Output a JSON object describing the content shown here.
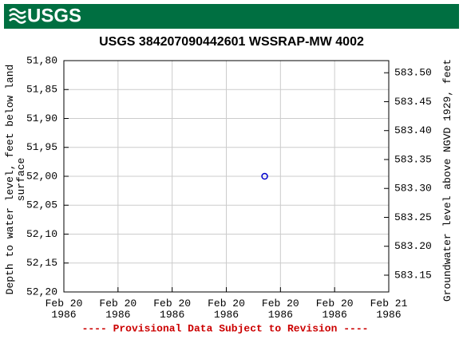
{
  "logo": "USGS",
  "chart_data": {
    "type": "scatter",
    "title": "USGS 384207090442601 WSSRAP-MW 4002",
    "ylabel": "Depth to water level, feet below land surface",
    "y2label": "Groundwater level above NGVD 1929, feet",
    "annotation": "---- Provisional Data Subject to Revision ----",
    "x": [
      "1986-02-20T14:50"
    ],
    "series": [
      {
        "color": "#0000cc",
        "values": [
          52.0
        ]
      }
    ],
    "xlim": [
      "1986-02-20T00:00",
      "1986-02-21T00:00"
    ],
    "xticks": [
      {
        "value": "1986-02-20T00:00",
        "label": "Feb 20\n1986"
      },
      {
        "value": "1986-02-20T04:00",
        "label": "Feb 20\n1986"
      },
      {
        "value": "1986-02-20T08:00",
        "label": "Feb 20\n1986"
      },
      {
        "value": "1986-02-20T12:00",
        "label": "Feb 20\n1986"
      },
      {
        "value": "1986-02-20T16:00",
        "label": "Feb 20\n1986"
      },
      {
        "value": "1986-02-20T20:00",
        "label": "Feb 20\n1986"
      },
      {
        "value": "1986-02-21T00:00",
        "label": "Feb 21\n1986"
      }
    ],
    "ylim": [
      51.8,
      52.2
    ],
    "y_inverted": true,
    "yticks": [
      {
        "value": 51.8,
        "label": "51,80"
      },
      {
        "value": 51.85,
        "label": "51,85"
      },
      {
        "value": 51.9,
        "label": "51,90"
      },
      {
        "value": 51.95,
        "label": "51,95"
      },
      {
        "value": 52.0,
        "label": "52,00"
      },
      {
        "value": 52.05,
        "label": "52,05"
      },
      {
        "value": 52.1,
        "label": "52,10"
      },
      {
        "value": 52.15,
        "label": "52,15"
      },
      {
        "value": 52.2,
        "label": "52,20"
      }
    ],
    "y2lim": [
      583.121,
      583.521
    ],
    "y2ticks": [
      {
        "value": 583.5,
        "label": "583.50"
      },
      {
        "value": 583.45,
        "label": "583.45"
      },
      {
        "value": 583.4,
        "label": "583.40"
      },
      {
        "value": 583.35,
        "label": "583.35"
      },
      {
        "value": 583.3,
        "label": "583.30"
      },
      {
        "value": 583.25,
        "label": "583.25"
      },
      {
        "value": 583.2,
        "label": "583.20"
      },
      {
        "value": 583.15,
        "label": "583.15"
      }
    ],
    "grid": true
  }
}
